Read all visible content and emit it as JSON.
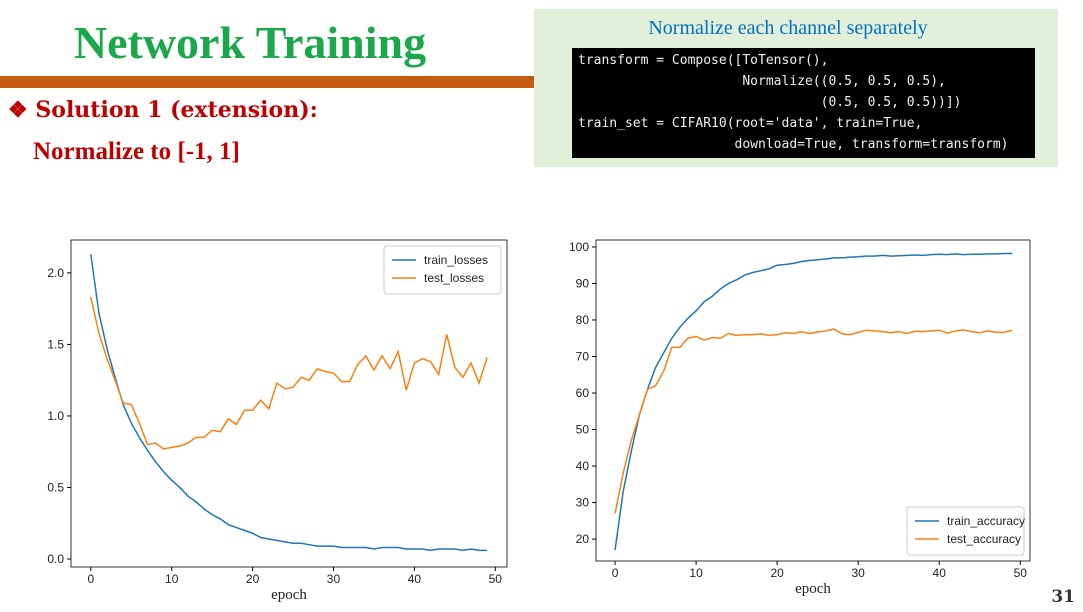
{
  "slide": {
    "title": "Network Training",
    "bullet": "❖ Solution 1 (extension):",
    "subtext": "Normalize to [-1, 1]",
    "page_number": "31"
  },
  "code_box": {
    "caption": "Normalize each channel separately",
    "lines": [
      "transform = Compose([ToTensor(),",
      "                     Normalize((0.5, 0.5, 0.5),",
      "                               (0.5, 0.5, 0.5))])",
      "train_set = CIFAR10(root='data', train=True,",
      "                    download=True, transform=transform)"
    ]
  },
  "chart_data": [
    {
      "type": "line",
      "x_label": "epoch",
      "x": [
        0,
        1,
        2,
        3,
        4,
        5,
        6,
        7,
        8,
        9,
        10,
        11,
        12,
        13,
        14,
        15,
        16,
        17,
        18,
        19,
        20,
        21,
        22,
        23,
        24,
        25,
        26,
        27,
        28,
        29,
        30,
        31,
        32,
        33,
        34,
        35,
        36,
        37,
        38,
        39,
        40,
        41,
        42,
        43,
        44,
        45,
        46,
        47,
        48,
        49
      ],
      "xlim": [
        -2.45,
        51.45
      ],
      "xticks": [
        0,
        10,
        20,
        30,
        40,
        50
      ],
      "ylim": [
        -0.056,
        2.23
      ],
      "yticks": [
        {
          "value": 0,
          "label": "0.0"
        },
        0.5,
        {
          "value": 1,
          "label": "1.0"
        },
        1.5,
        {
          "value": 2,
          "label": "2.0"
        }
      ],
      "legend": "upper right",
      "series": [
        {
          "name": "train_losses",
          "color": "#1f77b4",
          "values": [
            2.13,
            1.72,
            1.47,
            1.27,
            1.08,
            0.95,
            0.85,
            0.76,
            0.68,
            0.61,
            0.55,
            0.5,
            0.44,
            0.4,
            0.35,
            0.31,
            0.28,
            0.24,
            0.22,
            0.2,
            0.18,
            0.15,
            0.14,
            0.13,
            0.12,
            0.11,
            0.11,
            0.1,
            0.09,
            0.09,
            0.09,
            0.08,
            0.08,
            0.08,
            0.08,
            0.07,
            0.08,
            0.08,
            0.08,
            0.07,
            0.07,
            0.07,
            0.06,
            0.07,
            0.07,
            0.07,
            0.06,
            0.07,
            0.06,
            0.06
          ]
        },
        {
          "name": "test_losses",
          "color": "#ff7f0e",
          "values": [
            1.83,
            1.58,
            1.4,
            1.25,
            1.09,
            1.08,
            0.95,
            0.8,
            0.81,
            0.77,
            0.78,
            0.79,
            0.81,
            0.85,
            0.85,
            0.9,
            0.89,
            0.98,
            0.94,
            1.04,
            1.04,
            1.11,
            1.05,
            1.23,
            1.19,
            1.2,
            1.27,
            1.25,
            1.33,
            1.31,
            1.3,
            1.24,
            1.24,
            1.36,
            1.42,
            1.32,
            1.42,
            1.33,
            1.45,
            1.18,
            1.37,
            1.4,
            1.38,
            1.29,
            1.57,
            1.34,
            1.27,
            1.37,
            1.23,
            1.41
          ]
        }
      ]
    },
    {
      "type": "line",
      "x_label": "epoch",
      "x": [
        0,
        1,
        2,
        3,
        4,
        5,
        6,
        7,
        8,
        9,
        10,
        11,
        12,
        13,
        14,
        15,
        16,
        17,
        18,
        19,
        20,
        21,
        22,
        23,
        24,
        25,
        26,
        27,
        28,
        29,
        30,
        31,
        32,
        33,
        34,
        35,
        36,
        37,
        38,
        39,
        40,
        41,
        42,
        43,
        44,
        45,
        46,
        47,
        48,
        49
      ],
      "xlim": [
        -2.35,
        51.2
      ],
      "xticks": [
        0,
        10,
        20,
        30,
        40,
        50
      ],
      "ylim": [
        14,
        101.9
      ],
      "yticks": [
        20,
        30,
        40,
        50,
        60,
        70,
        80,
        90,
        100
      ],
      "legend": "lower right",
      "series": [
        {
          "name": "train_accuracy",
          "color": "#1f77b4",
          "values": [
            17,
            33,
            44,
            54,
            61,
            67,
            71,
            75,
            78,
            80.5,
            82.5,
            85,
            86.5,
            88.5,
            90,
            91,
            92.3,
            93,
            93.5,
            94,
            95,
            95.2,
            95.5,
            96,
            96.3,
            96.5,
            96.7,
            97,
            97,
            97.2,
            97.3,
            97.5,
            97.5,
            97.7,
            97.5,
            97.6,
            97.7,
            97.8,
            97.7,
            97.9,
            98,
            97.9,
            98.1,
            97.9,
            98,
            98,
            98.1,
            98.1,
            98.2,
            98.2
          ]
        },
        {
          "name": "test_accuracy",
          "color": "#ff7f0e",
          "values": [
            27,
            38,
            47,
            54,
            61,
            62,
            66,
            72.5,
            72.5,
            75,
            75.5,
            74.5,
            75.2,
            75,
            76.3,
            75.8,
            76,
            76,
            76.2,
            75.8,
            76,
            76.5,
            76.3,
            76.8,
            76.3,
            76.7,
            77,
            77.5,
            76.2,
            76,
            76.6,
            77.2,
            77,
            76.8,
            76.5,
            76.8,
            76.3,
            76.9,
            76.8,
            77,
            77.2,
            76.4,
            77,
            77.3,
            76.8,
            76.5,
            77,
            76.6,
            76.6,
            77.2
          ]
        }
      ]
    }
  ]
}
